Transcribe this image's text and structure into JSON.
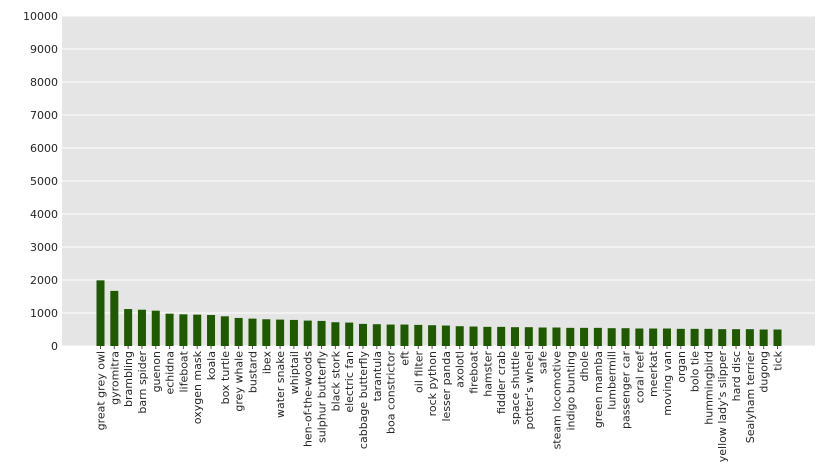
{
  "chart_data": {
    "type": "bar",
    "title": "",
    "xlabel": "",
    "ylabel": "",
    "ylim": [
      0,
      10000
    ],
    "yticks": [
      0,
      1000,
      2000,
      3000,
      4000,
      5000,
      6000,
      7000,
      8000,
      9000,
      10000
    ],
    "grid": true,
    "legend": "none",
    "colors": {
      "bar": "#1f5a00",
      "plot_background": "#e5e5e5",
      "grid": "#ffffff"
    },
    "categories": [
      "great grey owl",
      "gyromitra",
      "brambling",
      "barn spider",
      "guenon",
      "echidna",
      "lifeboat",
      "oxygen mask",
      "koala",
      "box turtle",
      "grey whale",
      "bustard",
      "ibex",
      "water snake",
      "whiptail",
      "hen-of-the-woods",
      "sulphur butterfly",
      "black stork",
      "electric fan",
      "cabbage butterfly",
      "tarantula",
      "boa constrictor",
      "eft",
      "oil filter",
      "rock python",
      "lesser panda",
      "axolotl",
      "fireboat",
      "hamster",
      "fiddler crab",
      "space shuttle",
      "potter's wheel",
      "safe",
      "steam locomotive",
      "indigo bunting",
      "dhole",
      "green mamba",
      "lumbermill",
      "passenger car",
      "coral reef",
      "meerkat",
      "moving van",
      "organ",
      "bolo tie",
      "hummingbird",
      "yellow lady's slipper",
      "hard disc",
      "Sealyham terrier",
      "dugong",
      "tick"
    ],
    "values": [
      1990,
      1670,
      1120,
      1100,
      1070,
      980,
      960,
      950,
      940,
      900,
      850,
      830,
      810,
      800,
      790,
      770,
      760,
      720,
      710,
      670,
      660,
      650,
      650,
      640,
      630,
      620,
      600,
      590,
      580,
      580,
      570,
      570,
      560,
      560,
      550,
      550,
      550,
      540,
      540,
      530,
      530,
      530,
      520,
      520,
      520,
      510,
      510,
      510,
      500,
      500
    ]
  }
}
